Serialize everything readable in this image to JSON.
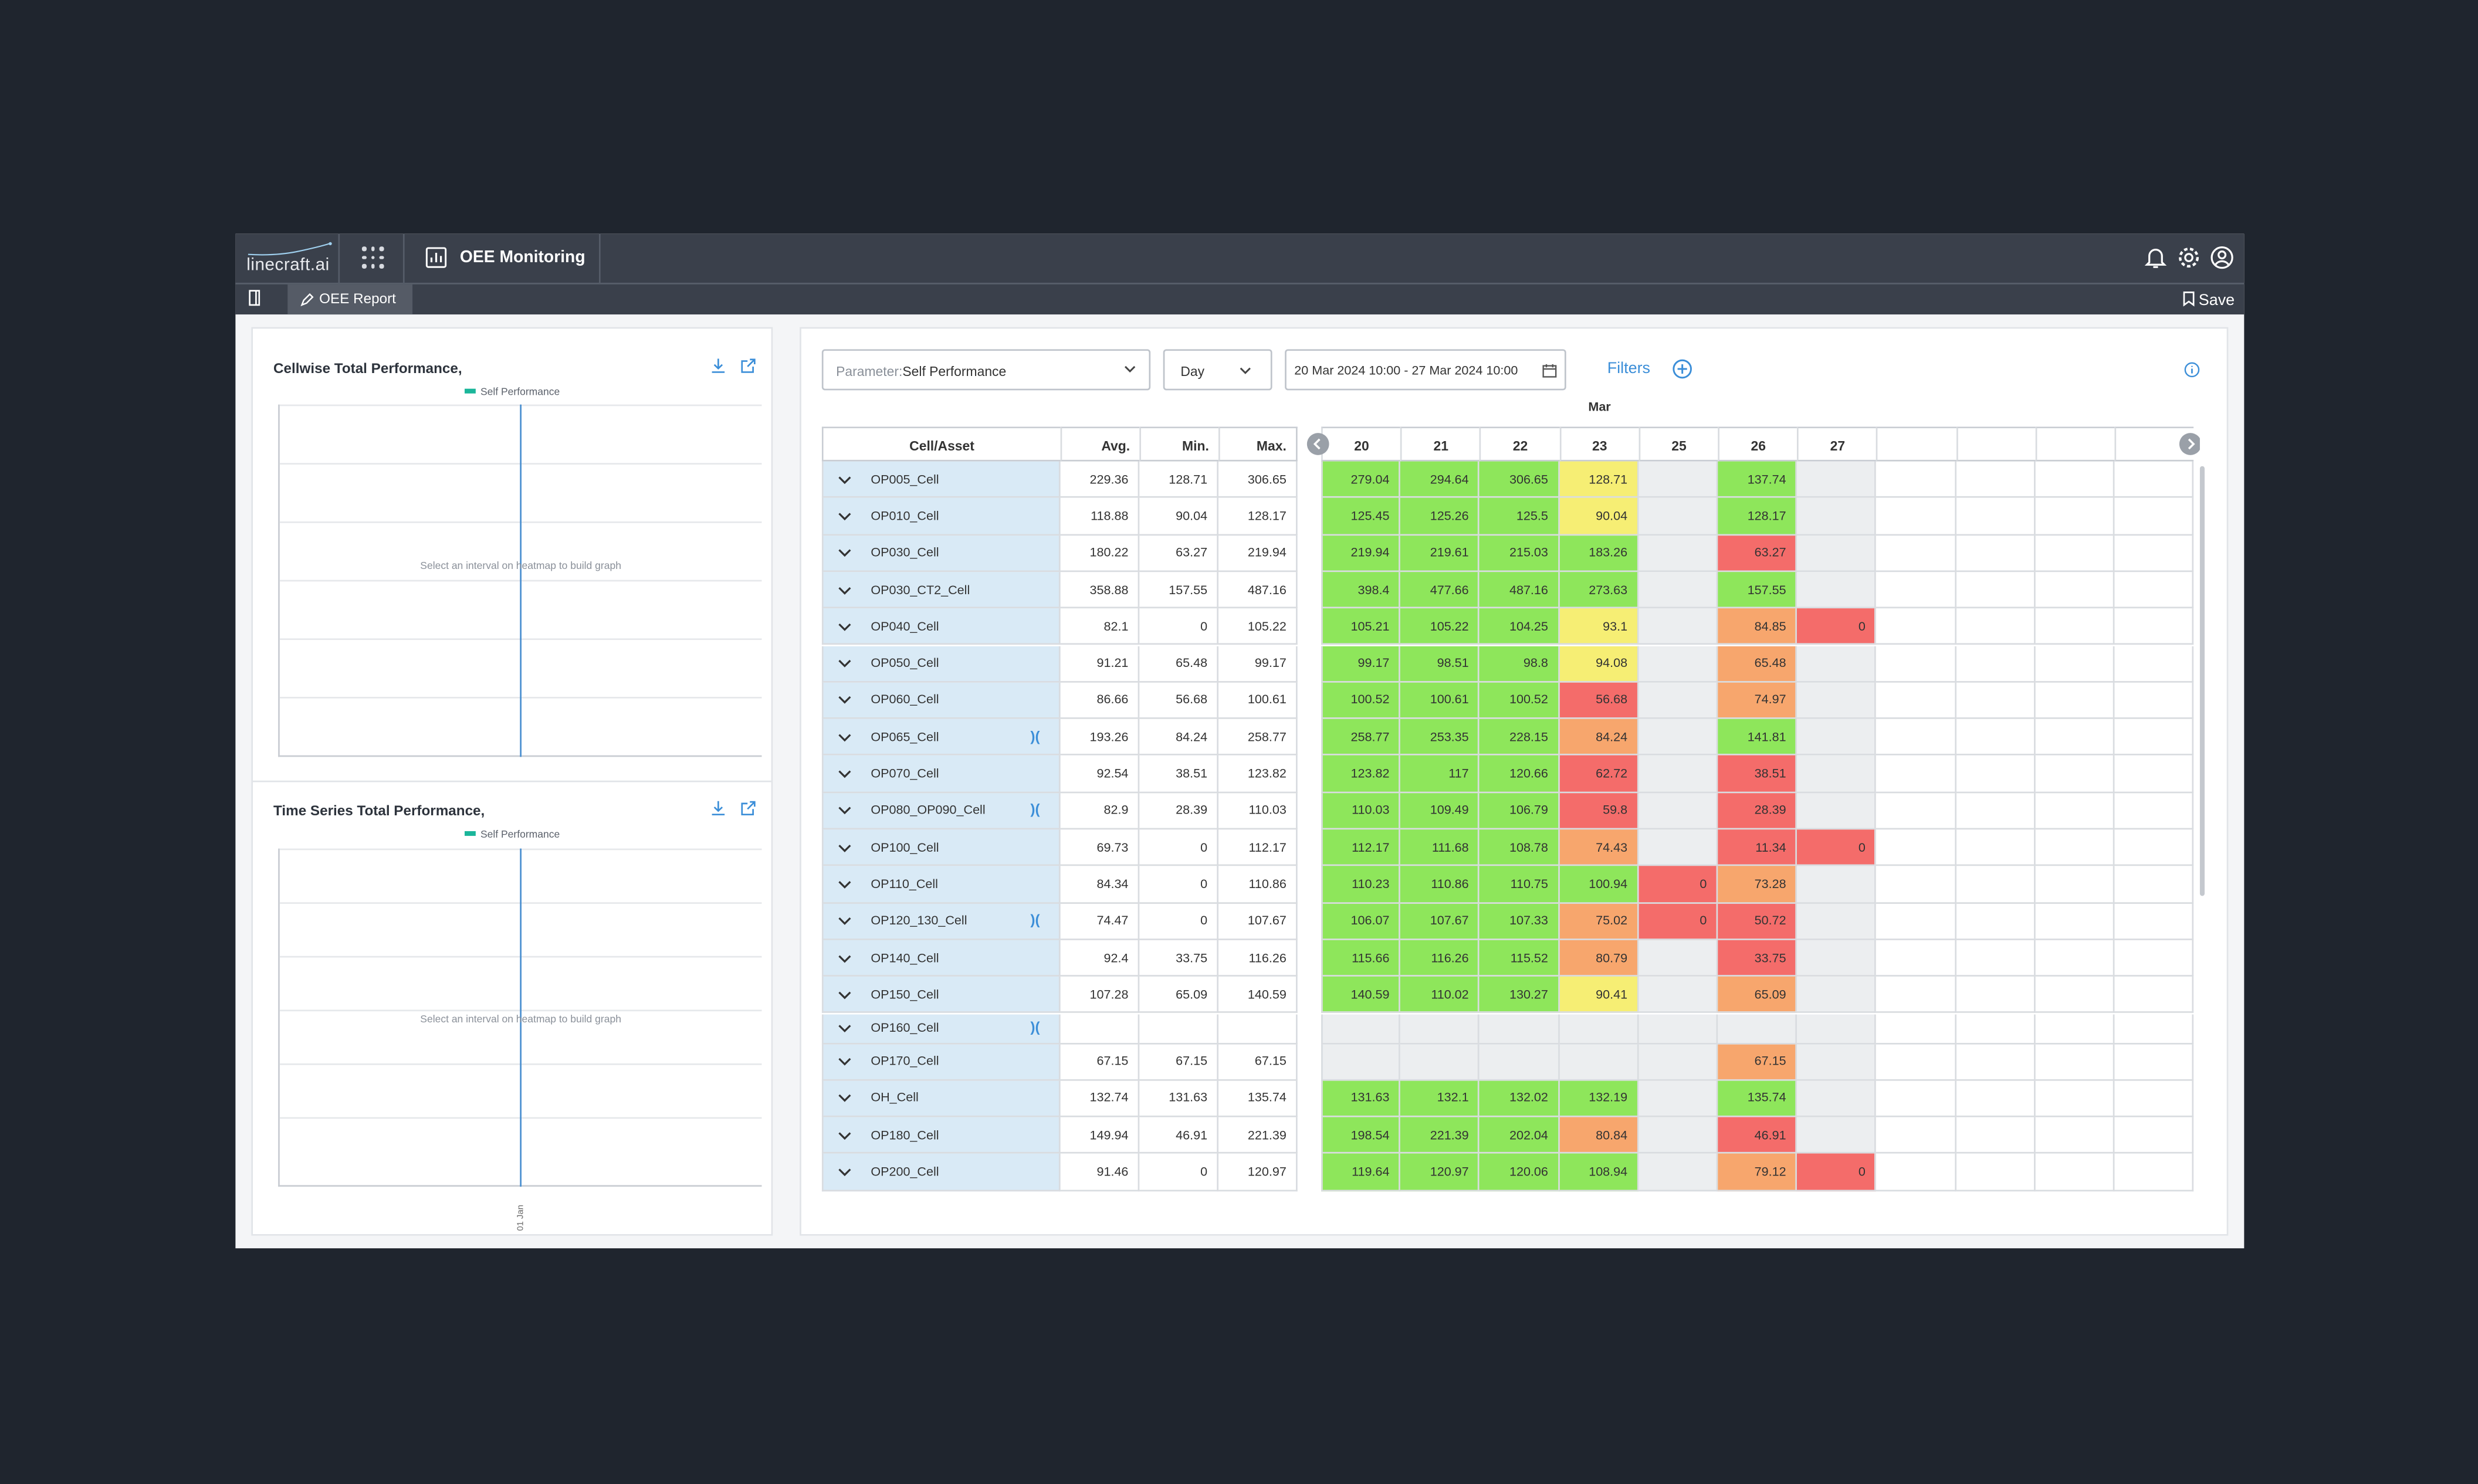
{
  "app": {
    "logo_text": "linecraft.ai",
    "module_title": "OEE Monitoring"
  },
  "tabbar": {
    "tab_label": "OEE Report",
    "save_label": "Save"
  },
  "chart1": {
    "title": "Cellwise Total Performance,",
    "legend": "Self Performance",
    "placeholder": "Select an interval on heatmap to build graph"
  },
  "chart2": {
    "title": "Time Series Total Performance,",
    "legend": "Self Performance",
    "placeholder": "Select an interval on heatmap to build graph",
    "x_tick": "01 Jan"
  },
  "controls": {
    "parameter_label": "Parameter:",
    "parameter_value": "Self Performance",
    "period": "Day",
    "date_range": "20 Mar 2024 10:00 - 27 Mar 2024 10:00",
    "filters_label": "Filters"
  },
  "table": {
    "month_label": "Mar",
    "headers": {
      "cell": "Cell/Asset",
      "avg": "Avg.",
      "min": "Min.",
      "max": "Max."
    },
    "days": [
      "20",
      "21",
      "22",
      "23",
      "25",
      "26",
      "27",
      "",
      "",
      "",
      ""
    ],
    "rows": [
      {
        "name": "OP005_Cell",
        "link": false,
        "avg": "229.36",
        "min": "128.71",
        "max": "306.65",
        "vals": [
          "279.04",
          "294.64",
          "306.65",
          "128.71",
          "",
          "137.74",
          ""
        ],
        "cls": [
          "g",
          "g",
          "g",
          "y",
          "na",
          "g",
          "na"
        ]
      },
      {
        "name": "OP010_Cell",
        "link": false,
        "avg": "118.88",
        "min": "90.04",
        "max": "128.17",
        "vals": [
          "125.45",
          "125.26",
          "125.5",
          "90.04",
          "",
          "128.17",
          ""
        ],
        "cls": [
          "g",
          "g",
          "g",
          "y",
          "na",
          "g",
          "na"
        ]
      },
      {
        "name": "OP030_Cell",
        "link": false,
        "avg": "180.22",
        "min": "63.27",
        "max": "219.94",
        "vals": [
          "219.94",
          "219.61",
          "215.03",
          "183.26",
          "",
          "63.27",
          ""
        ],
        "cls": [
          "g",
          "g",
          "g",
          "g",
          "na",
          "r",
          "na"
        ]
      },
      {
        "name": "OP030_CT2_Cell",
        "link": false,
        "avg": "358.88",
        "min": "157.55",
        "max": "487.16",
        "vals": [
          "398.4",
          "477.66",
          "487.16",
          "273.63",
          "",
          "157.55",
          ""
        ],
        "cls": [
          "g",
          "g",
          "g",
          "g",
          "na",
          "g",
          "na"
        ]
      },
      {
        "name": "OP040_Cell",
        "link": false,
        "avg": "82.1",
        "min": "0",
        "max": "105.22",
        "vals": [
          "105.21",
          "105.22",
          "104.25",
          "93.1",
          "",
          "84.85",
          "0"
        ],
        "cls": [
          "g",
          "g",
          "g",
          "y",
          "na",
          "o",
          "r"
        ]
      },
      {
        "name": "OP050_Cell",
        "link": false,
        "avg": "91.21",
        "min": "65.48",
        "max": "99.17",
        "vals": [
          "99.17",
          "98.51",
          "98.8",
          "94.08",
          "",
          "65.48",
          ""
        ],
        "cls": [
          "g",
          "g",
          "g",
          "y",
          "na",
          "o",
          "na"
        ]
      },
      {
        "name": "OP060_Cell",
        "link": false,
        "avg": "86.66",
        "min": "56.68",
        "max": "100.61",
        "vals": [
          "100.52",
          "100.61",
          "100.52",
          "56.68",
          "",
          "74.97",
          ""
        ],
        "cls": [
          "g",
          "g",
          "g",
          "r",
          "na",
          "o",
          "na"
        ]
      },
      {
        "name": "OP065_Cell",
        "link": true,
        "avg": "193.26",
        "min": "84.24",
        "max": "258.77",
        "vals": [
          "258.77",
          "253.35",
          "228.15",
          "84.24",
          "",
          "141.81",
          ""
        ],
        "cls": [
          "g",
          "g",
          "g",
          "o",
          "na",
          "g",
          "na"
        ]
      },
      {
        "name": "OP070_Cell",
        "link": false,
        "avg": "92.54",
        "min": "38.51",
        "max": "123.82",
        "vals": [
          "123.82",
          "117",
          "120.66",
          "62.72",
          "",
          "38.51",
          ""
        ],
        "cls": [
          "g",
          "g",
          "g",
          "r",
          "na",
          "r",
          "na"
        ]
      },
      {
        "name": "OP080_OP090_Cell",
        "link": true,
        "avg": "82.9",
        "min": "28.39",
        "max": "110.03",
        "vals": [
          "110.03",
          "109.49",
          "106.79",
          "59.8",
          "",
          "28.39",
          ""
        ],
        "cls": [
          "g",
          "g",
          "g",
          "r",
          "na",
          "r",
          "na"
        ]
      },
      {
        "name": "OP100_Cell",
        "link": false,
        "avg": "69.73",
        "min": "0",
        "max": "112.17",
        "vals": [
          "112.17",
          "111.68",
          "108.78",
          "74.43",
          "",
          "11.34",
          "0"
        ],
        "cls": [
          "g",
          "g",
          "g",
          "o",
          "na",
          "r",
          "r"
        ]
      },
      {
        "name": "OP110_Cell",
        "link": false,
        "avg": "84.34",
        "min": "0",
        "max": "110.86",
        "vals": [
          "110.23",
          "110.86",
          "110.75",
          "100.94",
          "0",
          "73.28",
          ""
        ],
        "cls": [
          "g",
          "g",
          "g",
          "g",
          "r",
          "o",
          "na"
        ]
      },
      {
        "name": "OP120_130_Cell",
        "link": true,
        "avg": "74.47",
        "min": "0",
        "max": "107.67",
        "vals": [
          "106.07",
          "107.67",
          "107.33",
          "75.02",
          "0",
          "50.72",
          ""
        ],
        "cls": [
          "g",
          "g",
          "g",
          "o",
          "r",
          "r",
          "na"
        ]
      },
      {
        "name": "OP140_Cell",
        "link": false,
        "avg": "92.4",
        "min": "33.75",
        "max": "116.26",
        "vals": [
          "115.66",
          "116.26",
          "115.52",
          "80.79",
          "",
          "33.75",
          ""
        ],
        "cls": [
          "g",
          "g",
          "g",
          "o",
          "na",
          "r",
          "na"
        ]
      },
      {
        "name": "OP150_Cell",
        "link": false,
        "avg": "107.28",
        "min": "65.09",
        "max": "140.59",
        "vals": [
          "140.59",
          "110.02",
          "130.27",
          "90.41",
          "",
          "65.09",
          ""
        ],
        "cls": [
          "g",
          "g",
          "g",
          "y",
          "na",
          "o",
          "na"
        ]
      },
      {
        "name": "OP160_Cell",
        "link": true,
        "avg": "",
        "min": "",
        "max": "",
        "vals": [
          "",
          "",
          "",
          "",
          "",
          "",
          ""
        ],
        "cls": [
          "na",
          "na",
          "na",
          "na",
          "na",
          "na",
          "na"
        ]
      },
      {
        "name": "OP170_Cell",
        "link": false,
        "avg": "67.15",
        "min": "67.15",
        "max": "67.15",
        "vals": [
          "",
          "",
          "",
          "",
          "",
          "67.15",
          ""
        ],
        "cls": [
          "na",
          "na",
          "na",
          "na",
          "na",
          "o",
          "na"
        ]
      },
      {
        "name": "OH_Cell",
        "link": false,
        "avg": "132.74",
        "min": "131.63",
        "max": "135.74",
        "vals": [
          "131.63",
          "132.1",
          "132.02",
          "132.19",
          "",
          "135.74",
          ""
        ],
        "cls": [
          "g",
          "g",
          "g",
          "g",
          "na",
          "g",
          "na"
        ]
      },
      {
        "name": "OP180_Cell",
        "link": false,
        "avg": "149.94",
        "min": "46.91",
        "max": "221.39",
        "vals": [
          "198.54",
          "221.39",
          "202.04",
          "80.84",
          "",
          "46.91",
          ""
        ],
        "cls": [
          "g",
          "g",
          "g",
          "o",
          "na",
          "r",
          "na"
        ]
      },
      {
        "name": "OP200_Cell",
        "link": false,
        "avg": "91.46",
        "min": "0",
        "max": "120.97",
        "vals": [
          "119.64",
          "120.97",
          "120.06",
          "108.94",
          "",
          "79.12",
          "0"
        ],
        "cls": [
          "g",
          "g",
          "g",
          "g",
          "na",
          "o",
          "r"
        ]
      }
    ]
  }
}
